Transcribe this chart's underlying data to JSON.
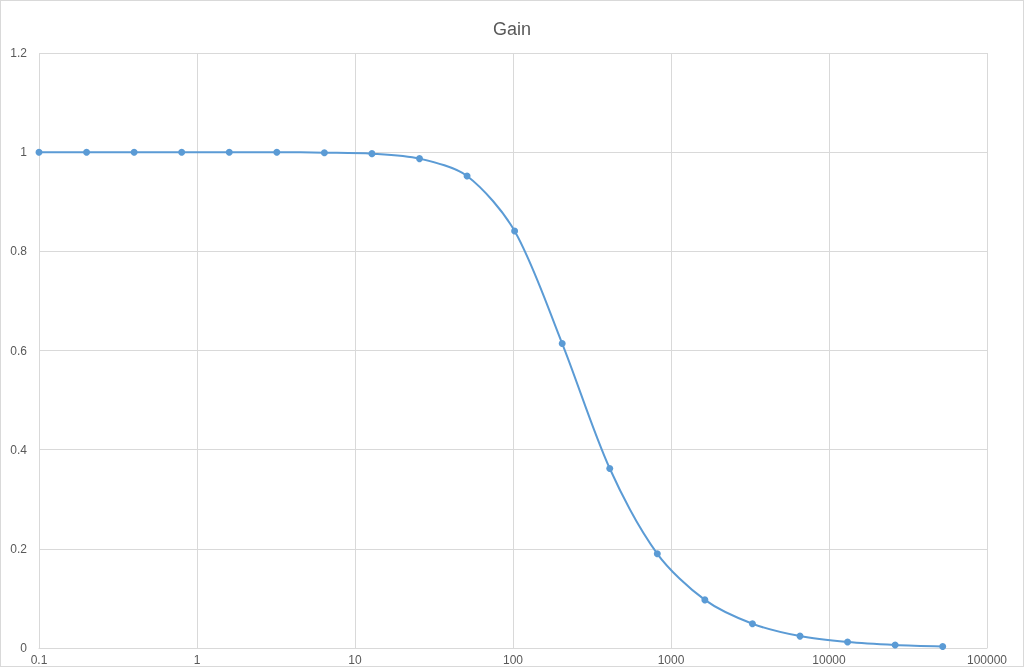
{
  "chart_data": {
    "type": "line",
    "title": "Gain",
    "x": [
      0.1,
      0.2,
      0.4,
      0.8,
      1.6,
      3.2,
      6.4,
      12.8,
      25.6,
      51.2,
      102.4,
      204.8,
      409.6,
      819.2,
      1638.4,
      3276.8,
      6553.6,
      13107.2,
      26214.4,
      52428.8
    ],
    "series": [
      {
        "color": "#5b9bd5",
        "values": [
          1,
          1,
          1,
          1,
          1,
          1,
          0.999,
          0.997,
          0.987,
          0.952,
          0.841,
          0.614,
          0.362,
          0.19,
          0.097,
          0.049,
          0.024,
          0.012,
          0.006,
          0.003
        ]
      }
    ],
    "log": "x",
    "xlim": [
      0.1,
      100000
    ],
    "xticks": [
      0.1,
      1,
      10,
      100,
      1000,
      10000,
      100000
    ],
    "ylim": [
      0,
      1.2
    ],
    "yticks": [
      0,
      0.2,
      0.4,
      0.6,
      0.8,
      1,
      1.2
    ],
    "grid": true,
    "marker": "circle",
    "line_style": "solid"
  }
}
